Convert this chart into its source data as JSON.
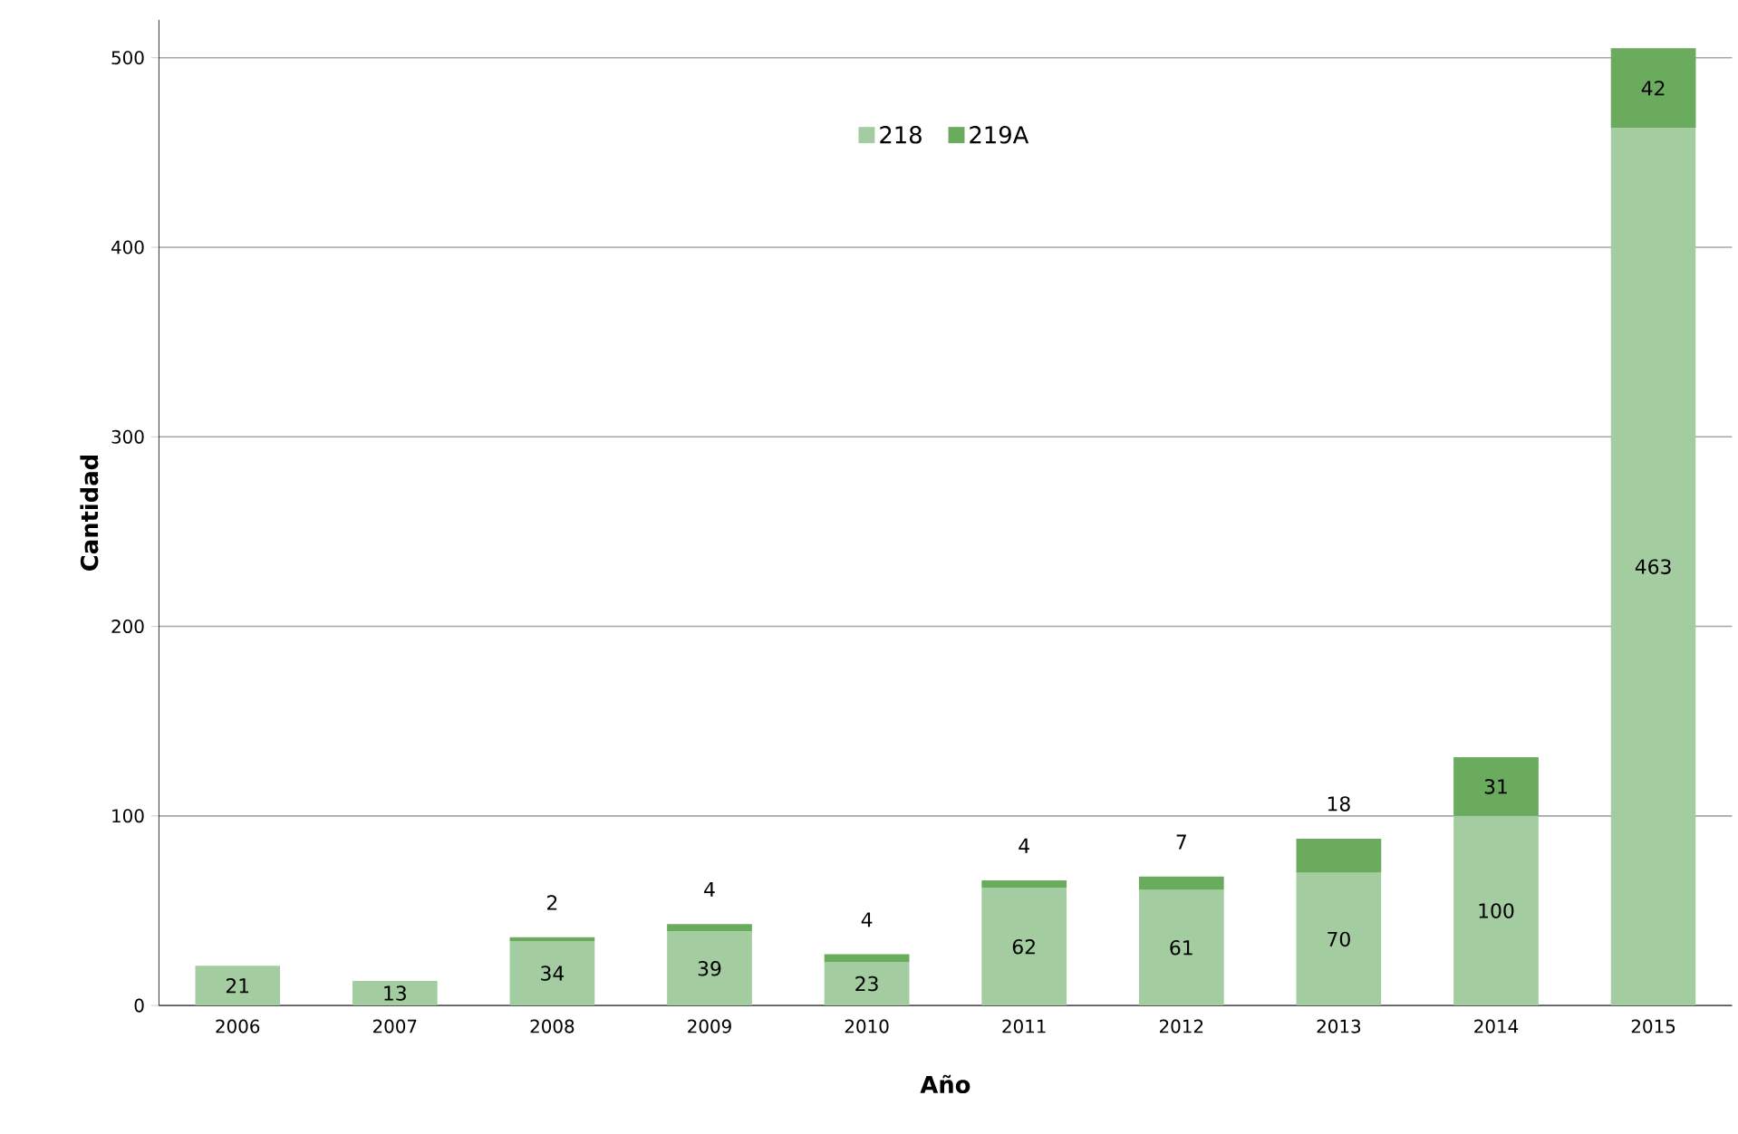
{
  "chart_data": {
    "type": "bar",
    "stacked": true,
    "xlabel": "Año",
    "ylabel": "Cantidad",
    "categories": [
      "2006",
      "2007",
      "2008",
      "2009",
      "2010",
      "2011",
      "2012",
      "2013",
      "2014",
      "2015"
    ],
    "series": [
      {
        "name": "218",
        "color": "#a3cda0",
        "values": [
          21,
          13,
          34,
          39,
          23,
          62,
          61,
          70,
          100,
          463
        ]
      },
      {
        "name": "219A",
        "color": "#6aab5e",
        "values": [
          null,
          null,
          2,
          4,
          4,
          4,
          7,
          18,
          31,
          42
        ]
      }
    ],
    "ylim": [
      0,
      520
    ],
    "yticks": [
      0,
      100,
      200,
      300,
      400,
      500
    ],
    "grid": "y",
    "legend": "top",
    "data_labels": true
  }
}
